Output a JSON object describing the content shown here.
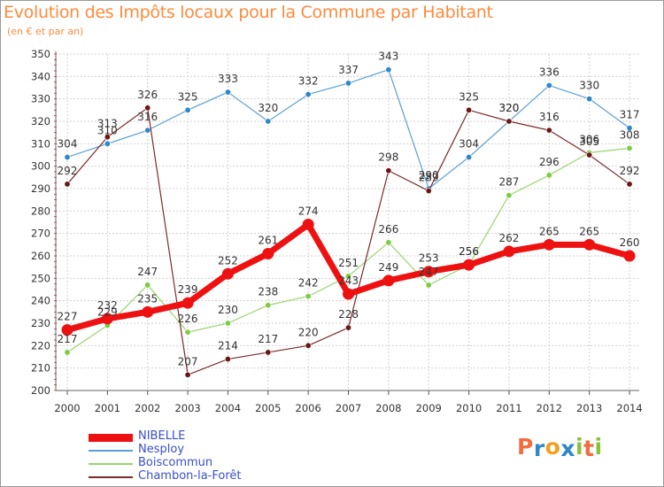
{
  "chart_data": {
    "type": "line",
    "title": "Evolution des Impôts locaux pour la Commune par Habitant",
    "subtitle": "(en € et par an)",
    "xlabel": "",
    "ylabel": "",
    "ylim": [
      200,
      350
    ],
    "yticks": [
      200,
      210,
      220,
      230,
      240,
      250,
      260,
      270,
      280,
      290,
      300,
      310,
      320,
      330,
      340,
      350
    ],
    "categories": [
      "2000",
      "2001",
      "2002",
      "2003",
      "2004",
      "2005",
      "2006",
      "2007",
      "2008",
      "2009",
      "2010",
      "2011",
      "2012",
      "2013",
      "2014"
    ],
    "grid": true,
    "legend_position": "bottom-left",
    "series": [
      {
        "name": "Nesploy",
        "color": "#5a9fd4",
        "marker": "#2f86c8",
        "width": 1.2,
        "values": [
          304,
          310,
          316,
          325,
          333,
          320,
          332,
          337,
          343,
          290,
          304,
          320,
          336,
          330,
          317
        ]
      },
      {
        "name": "Boiscommun",
        "color": "#9ad46f",
        "marker": "#7ccc3e",
        "width": 1.2,
        "values": [
          217,
          229,
          247,
          226,
          230,
          238,
          242,
          251,
          266,
          247,
          256,
          287,
          296,
          306,
          308
        ]
      },
      {
        "name": "Chambon-la-Forêt",
        "color": "#7b2b2b",
        "marker": "#6b1616",
        "width": 1.2,
        "values": [
          292,
          313,
          326,
          207,
          214,
          217,
          220,
          228,
          298,
          289,
          325,
          320,
          316,
          305,
          292
        ]
      },
      {
        "name": "NIBELLE",
        "color": "#ee1111",
        "marker": "#ee1111",
        "width": 7,
        "values": [
          227,
          232,
          235,
          239,
          252,
          261,
          274,
          243,
          249,
          253,
          256,
          262,
          265,
          265,
          260
        ]
      }
    ],
    "legend_order": [
      "NIBELLE",
      "Nesploy",
      "Boiscommun",
      "Chambon-la-Forêt"
    ]
  },
  "logo": {
    "letters": [
      "P",
      "r",
      "o",
      "x",
      "i",
      "t",
      "i"
    ],
    "colors": [
      "#f26d3d",
      "#2f86c8",
      "#f0a020",
      "#2f86c8",
      "#86c23a",
      "#f26d3d",
      "#86c23a"
    ]
  }
}
